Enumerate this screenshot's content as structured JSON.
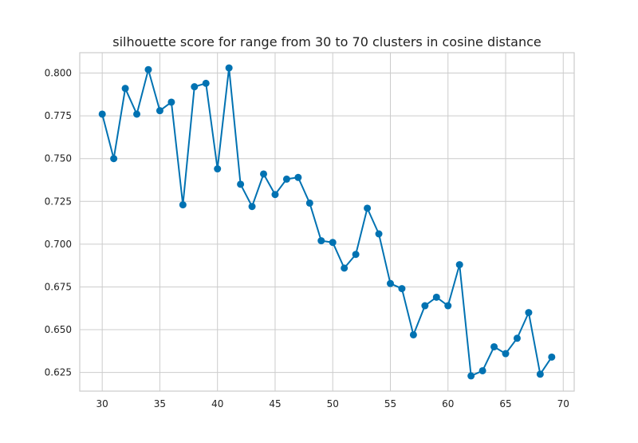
{
  "chart_data": {
    "type": "line",
    "title": "silhouette score for range from 30 to 70 clusters in cosine distance",
    "xlabel": "",
    "ylabel": "",
    "x": [
      30,
      31,
      32,
      33,
      34,
      35,
      36,
      37,
      38,
      39,
      40,
      41,
      42,
      43,
      44,
      45,
      46,
      47,
      48,
      49,
      50,
      51,
      52,
      53,
      54,
      55,
      56,
      57,
      58,
      59,
      60,
      61,
      62,
      63,
      64,
      65,
      66,
      67,
      68,
      69
    ],
    "series": [
      {
        "values": [
          0.776,
          0.75,
          0.791,
          0.776,
          0.802,
          0.778,
          0.783,
          0.723,
          0.792,
          0.794,
          0.744,
          0.803,
          0.735,
          0.722,
          0.741,
          0.729,
          0.738,
          0.739,
          0.724,
          0.702,
          0.701,
          0.686,
          0.694,
          0.721,
          0.706,
          0.677,
          0.674,
          0.647,
          0.664,
          0.669,
          0.664,
          0.688,
          0.623,
          0.626,
          0.64,
          0.636,
          0.645,
          0.66,
          0.624,
          0.634
        ],
        "color": "#0072B2"
      }
    ],
    "xticks": [
      30,
      35,
      40,
      45,
      50,
      55,
      60,
      65,
      70
    ],
    "yticks": [
      0.625,
      0.65,
      0.675,
      0.7,
      0.725,
      0.75,
      0.775,
      0.8
    ],
    "xtick_labels": [
      "30",
      "35",
      "40",
      "45",
      "50",
      "55",
      "60",
      "65",
      "70"
    ],
    "ytick_labels": [
      "0.625",
      "0.650",
      "0.675",
      "0.700",
      "0.725",
      "0.750",
      "0.775",
      "0.800"
    ],
    "xlim": [
      28.05,
      70.95
    ],
    "ylim": [
      0.6141,
      0.8119
    ],
    "grid": true,
    "legend": "none"
  }
}
